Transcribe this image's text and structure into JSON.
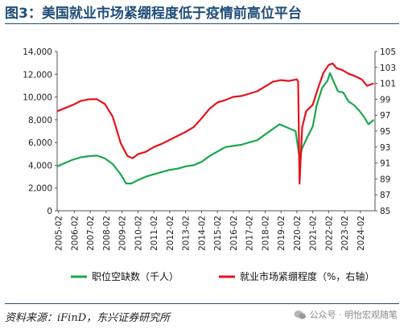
{
  "title": "图3：美国就业市场紧绷程度低于疫情前高位平台",
  "source": "资料来源：iFinD，东兴证券研究所",
  "watermark": "公众号 · 明怡宏观随笔",
  "colors": {
    "title": "#1f4e79",
    "green": "#1aa84b",
    "red": "#e8111a"
  },
  "chart_data": {
    "type": "line",
    "x_tick_labels": [
      "2005-02",
      "2006-02",
      "2007-02",
      "2008-02",
      "2009-02",
      "2010-02",
      "2011-02",
      "2012-02",
      "2013-02",
      "2014-02",
      "2015-02",
      "2016-02",
      "2017-02",
      "2018-02",
      "2019-02",
      "2020-02",
      "2021-02",
      "2022-02",
      "2023-02",
      "2024-02"
    ],
    "y_left": {
      "lim": [
        0,
        14000
      ],
      "ticks": [
        "0",
        "2,000",
        "4,000",
        "6,000",
        "8,000",
        "10,000",
        "12,000",
        "14,000"
      ]
    },
    "y_right": {
      "lim": [
        85,
        105
      ],
      "ticks": [
        "85",
        "87",
        "89",
        "91",
        "93",
        "95",
        "97",
        "99",
        "101",
        "103",
        "105"
      ]
    },
    "grid": false,
    "legend_position": "bottom",
    "series": [
      {
        "name": "职位空缺数（千人）",
        "axis": "left",
        "color": "#1aa84b",
        "points": [
          [
            "2005-01",
            3900
          ],
          [
            "2005-07",
            4200
          ],
          [
            "2006-01",
            4500
          ],
          [
            "2006-07",
            4700
          ],
          [
            "2007-01",
            4800
          ],
          [
            "2007-07",
            4850
          ],
          [
            "2008-01",
            4600
          ],
          [
            "2008-07",
            4100
          ],
          [
            "2009-01",
            3200
          ],
          [
            "2009-05",
            2400
          ],
          [
            "2009-09",
            2400
          ],
          [
            "2010-02",
            2700
          ],
          [
            "2010-08",
            3000
          ],
          [
            "2011-02",
            3200
          ],
          [
            "2011-08",
            3400
          ],
          [
            "2012-02",
            3600
          ],
          [
            "2012-08",
            3700
          ],
          [
            "2013-02",
            3900
          ],
          [
            "2013-08",
            4000
          ],
          [
            "2014-02",
            4300
          ],
          [
            "2014-08",
            4800
          ],
          [
            "2015-02",
            5200
          ],
          [
            "2015-08",
            5600
          ],
          [
            "2016-02",
            5700
          ],
          [
            "2016-08",
            5800
          ],
          [
            "2017-02",
            6000
          ],
          [
            "2017-08",
            6200
          ],
          [
            "2018-02",
            6700
          ],
          [
            "2018-08",
            7200
          ],
          [
            "2019-01",
            7600
          ],
          [
            "2019-07",
            7300
          ],
          [
            "2020-01",
            7000
          ],
          [
            "2020-04",
            4600
          ],
          [
            "2020-06",
            5500
          ],
          [
            "2020-10",
            6500
          ],
          [
            "2021-02",
            7400
          ],
          [
            "2021-05",
            9300
          ],
          [
            "2021-09",
            10800
          ],
          [
            "2022-01",
            11400
          ],
          [
            "2022-03",
            12100
          ],
          [
            "2022-06",
            11300
          ],
          [
            "2022-09",
            10500
          ],
          [
            "2023-01",
            10400
          ],
          [
            "2023-05",
            9600
          ],
          [
            "2023-09",
            9300
          ],
          [
            "2024-01",
            8800
          ],
          [
            "2024-05",
            8200
          ],
          [
            "2024-08",
            7600
          ],
          [
            "2024-12",
            8000
          ]
        ]
      },
      {
        "name": "就业市场紧绷程度（%，右轴）",
        "axis": "right",
        "color": "#e8111a",
        "points": [
          [
            "2005-01",
            97.5
          ],
          [
            "2005-07",
            97.9
          ],
          [
            "2006-01",
            98.3
          ],
          [
            "2006-07",
            98.8
          ],
          [
            "2007-01",
            99.0
          ],
          [
            "2007-07",
            99.0
          ],
          [
            "2008-01",
            98.4
          ],
          [
            "2008-07",
            96.8
          ],
          [
            "2009-01",
            93.5
          ],
          [
            "2009-06",
            91.9
          ],
          [
            "2009-10",
            91.6
          ],
          [
            "2010-02",
            92.1
          ],
          [
            "2010-08",
            92.4
          ],
          [
            "2011-02",
            93.0
          ],
          [
            "2011-08",
            93.4
          ],
          [
            "2012-02",
            93.9
          ],
          [
            "2012-08",
            94.4
          ],
          [
            "2013-02",
            94.9
          ],
          [
            "2013-08",
            95.5
          ],
          [
            "2014-02",
            96.6
          ],
          [
            "2014-08",
            97.8
          ],
          [
            "2015-02",
            98.6
          ],
          [
            "2015-08",
            98.9
          ],
          [
            "2016-02",
            99.3
          ],
          [
            "2016-08",
            99.4
          ],
          [
            "2017-02",
            99.7
          ],
          [
            "2017-08",
            100.0
          ],
          [
            "2018-02",
            100.6
          ],
          [
            "2018-08",
            101.2
          ],
          [
            "2019-02",
            101.4
          ],
          [
            "2019-08",
            101.3
          ],
          [
            "2020-02",
            101.5
          ],
          [
            "2020-03",
            101.2
          ],
          [
            "2020-04",
            88.4
          ],
          [
            "2020-06",
            95.5
          ],
          [
            "2020-09",
            97.5
          ],
          [
            "2021-02",
            98.3
          ],
          [
            "2021-06",
            100.4
          ],
          [
            "2021-10",
            102.3
          ],
          [
            "2022-02",
            103.3
          ],
          [
            "2022-05",
            103.5
          ],
          [
            "2022-08",
            102.9
          ],
          [
            "2022-12",
            102.7
          ],
          [
            "2023-05",
            102.2
          ],
          [
            "2023-10",
            101.9
          ],
          [
            "2024-03",
            101.5
          ],
          [
            "2024-07",
            100.7
          ],
          [
            "2024-12",
            101.0
          ]
        ]
      }
    ]
  }
}
